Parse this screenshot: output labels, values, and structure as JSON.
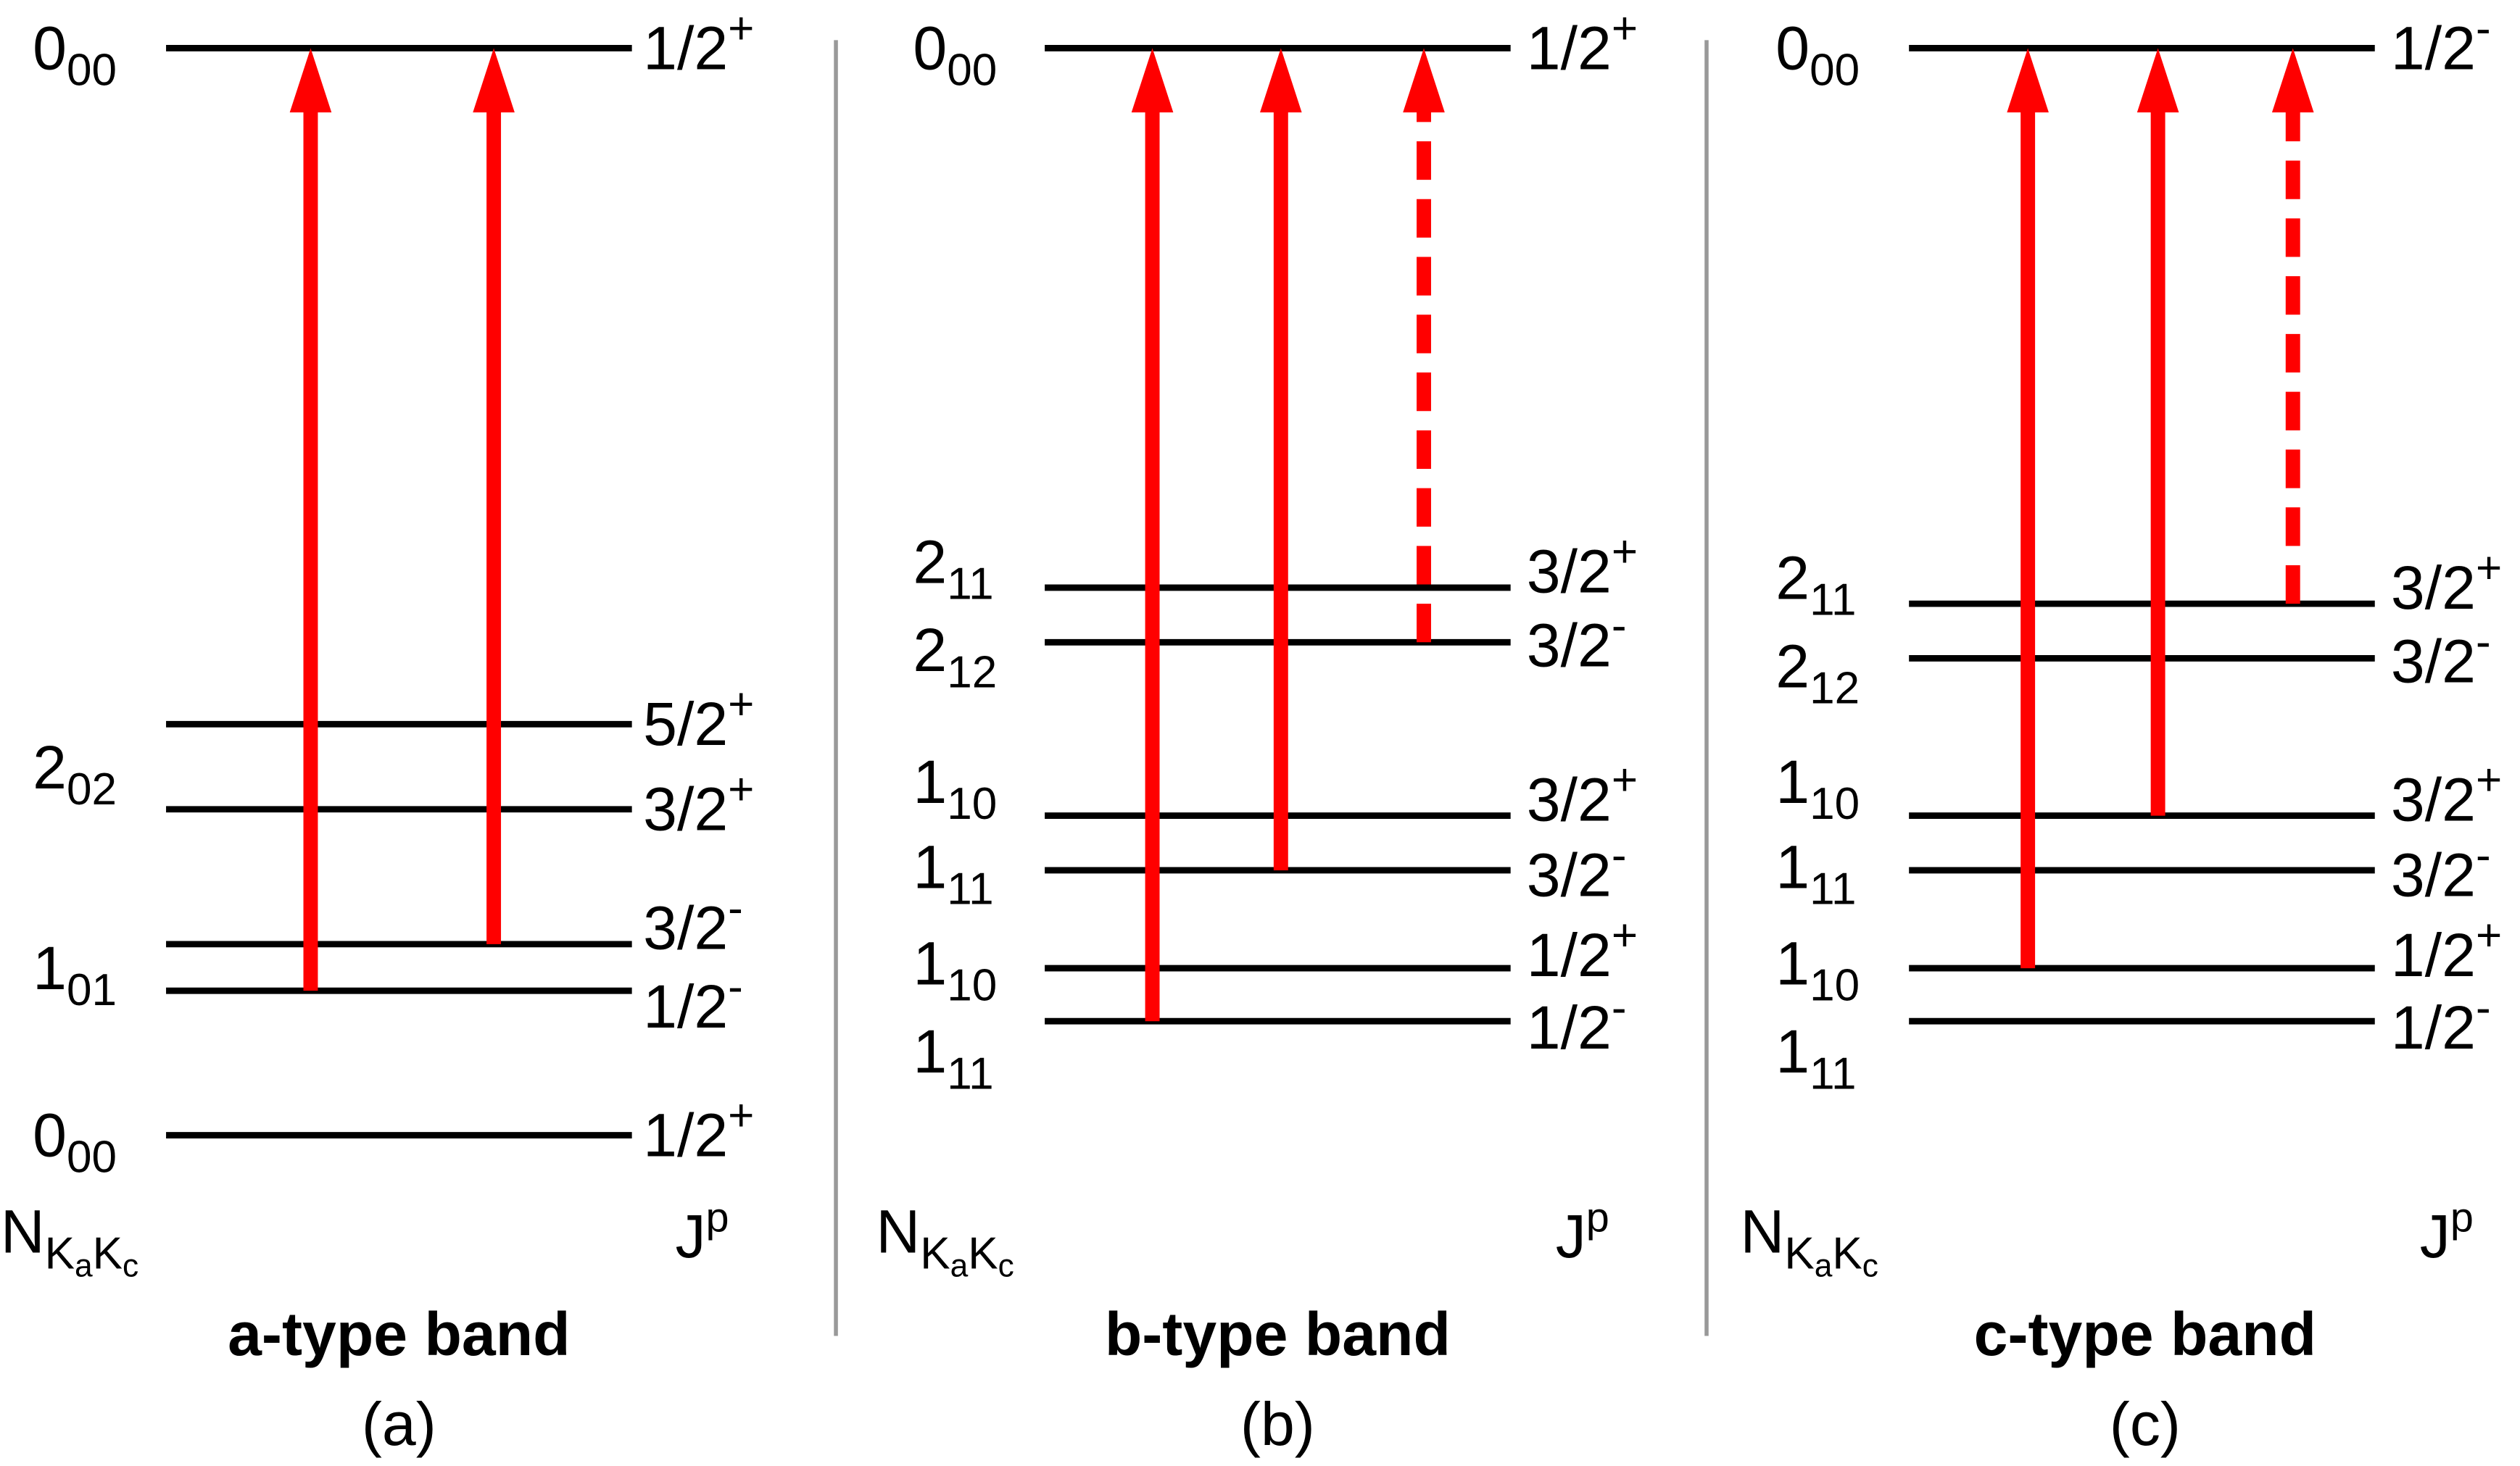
{
  "panels": [
    {
      "title": "a-type band",
      "caption": "(a)",
      "n_header": {
        "base": "N",
        "k1": "K",
        "k1_sub": "a",
        "k2": "K",
        "k2_sub": "c"
      },
      "j_header": {
        "base": "J",
        "sup": "p"
      },
      "left_labels": [
        {
          "n": "0",
          "sub": "00"
        },
        {
          "n": "2",
          "sub": "02"
        },
        {
          "n": "1",
          "sub": "01"
        },
        {
          "n": "0",
          "sub": "00"
        }
      ],
      "right_labels": [
        {
          "j": "1/2",
          "parity": "+"
        },
        {
          "j": "5/2",
          "parity": "+"
        },
        {
          "j": "3/2",
          "parity": "+"
        },
        {
          "j": "3/2",
          "parity": "-"
        },
        {
          "j": "1/2",
          "parity": "-"
        },
        {
          "j": "1/2",
          "parity": "+"
        }
      ]
    },
    {
      "title": "b-type band",
      "caption": "(b)",
      "n_header": {
        "base": "N",
        "k1": "K",
        "k1_sub": "a",
        "k2": "K",
        "k2_sub": "c"
      },
      "j_header": {
        "base": "J",
        "sup": "p"
      },
      "left_labels": [
        {
          "n": "0",
          "sub": "00"
        },
        {
          "n": "2",
          "sub": "11"
        },
        {
          "n": "2",
          "sub": "12"
        },
        {
          "n": "1",
          "sub": "10"
        },
        {
          "n": "1",
          "sub": "11"
        },
        {
          "n": "1",
          "sub": "10"
        },
        {
          "n": "1",
          "sub": "11"
        }
      ],
      "right_labels": [
        {
          "j": "1/2",
          "parity": "+"
        },
        {
          "j": "3/2",
          "parity": "+"
        },
        {
          "j": "3/2",
          "parity": "-"
        },
        {
          "j": "3/2",
          "parity": "+"
        },
        {
          "j": "3/2",
          "parity": "-"
        },
        {
          "j": "1/2",
          "parity": "+"
        },
        {
          "j": "1/2",
          "parity": "-"
        }
      ]
    },
    {
      "title": "c-type band",
      "caption": "(c)",
      "n_header": {
        "base": "N",
        "k1": "K",
        "k1_sub": "a",
        "k2": "K",
        "k2_sub": "c"
      },
      "j_header": {
        "base": "J",
        "sup": "p"
      },
      "left_labels": [
        {
          "n": "0",
          "sub": "00"
        },
        {
          "n": "2",
          "sub": "11"
        },
        {
          "n": "2",
          "sub": "12"
        },
        {
          "n": "1",
          "sub": "10"
        },
        {
          "n": "1",
          "sub": "11"
        },
        {
          "n": "1",
          "sub": "10"
        },
        {
          "n": "1",
          "sub": "11"
        }
      ],
      "right_labels": [
        {
          "j": "1/2",
          "parity": "-"
        },
        {
          "j": "3/2",
          "parity": "+"
        },
        {
          "j": "3/2",
          "parity": "-"
        },
        {
          "j": "3/2",
          "parity": "+"
        },
        {
          "j": "3/2",
          "parity": "-"
        },
        {
          "j": "1/2",
          "parity": "+"
        },
        {
          "j": "1/2",
          "parity": "-"
        }
      ]
    }
  ]
}
